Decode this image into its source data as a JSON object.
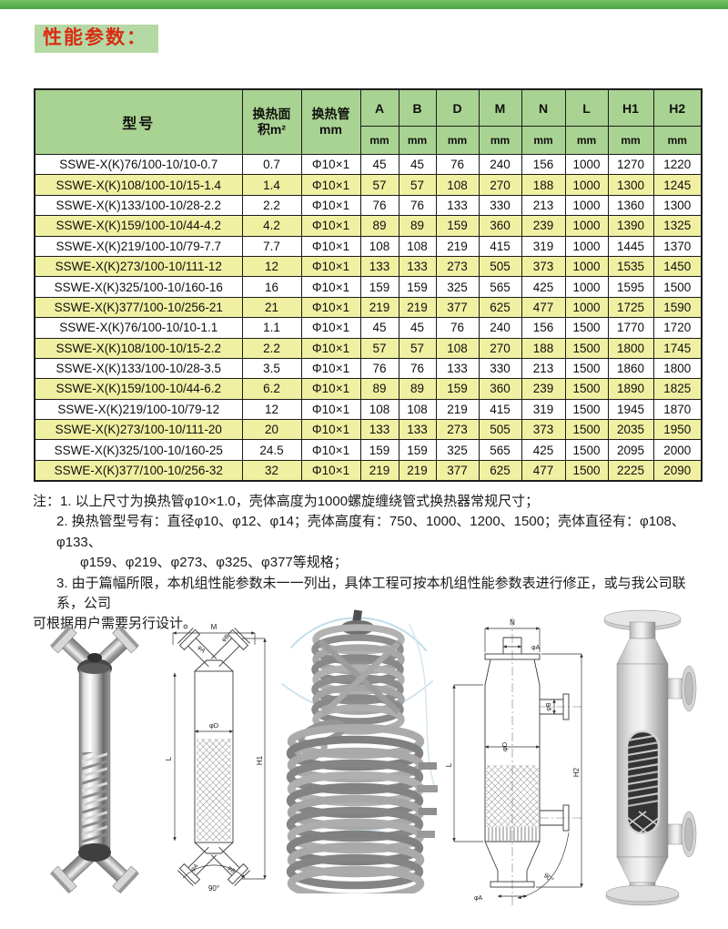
{
  "page": {
    "title": "性能参数："
  },
  "colors": {
    "top_bar": "#55ac4b",
    "title_bg": "#b5d9a4",
    "title_text": "#d92c15",
    "header_green": "#a9d392",
    "row_yellow": "#f0f0a2",
    "border": "#1c1c1c"
  },
  "table": {
    "headers": {
      "model": "型号",
      "area_line1": "换热面",
      "area_line2": "积m²",
      "tube_line1": "换热管",
      "tube_line2": "mm",
      "dims": [
        "A",
        "B",
        "D",
        "M",
        "N",
        "L",
        "H1",
        "H2"
      ],
      "unit": "mm"
    },
    "rows": [
      [
        "SSWE-X(K)76/100-10/10-0.7",
        "0.7",
        "Φ10×1",
        "45",
        "45",
        "76",
        "240",
        "156",
        "1000",
        "1270",
        "1220"
      ],
      [
        "SSWE-X(K)108/100-10/15-1.4",
        "1.4",
        "Φ10×1",
        "57",
        "57",
        "108",
        "270",
        "188",
        "1000",
        "1300",
        "1245"
      ],
      [
        "SSWE-X(K)133/100-10/28-2.2",
        "2.2",
        "Φ10×1",
        "76",
        "76",
        "133",
        "330",
        "213",
        "1000",
        "1360",
        "1300"
      ],
      [
        "SSWE-X(K)159/100-10/44-4.2",
        "4.2",
        "Φ10×1",
        "89",
        "89",
        "159",
        "360",
        "239",
        "1000",
        "1390",
        "1325"
      ],
      [
        "SSWE-X(K)219/100-10/79-7.7",
        "7.7",
        "Φ10×1",
        "108",
        "108",
        "219",
        "415",
        "319",
        "1000",
        "1445",
        "1370"
      ],
      [
        "SSWE-X(K)273/100-10/111-12",
        "12",
        "Φ10×1",
        "133",
        "133",
        "273",
        "505",
        "373",
        "1000",
        "1535",
        "1450"
      ],
      [
        "SSWE-X(K)325/100-10/160-16",
        "16",
        "Φ10×1",
        "159",
        "159",
        "325",
        "565",
        "425",
        "1000",
        "1595",
        "1500"
      ],
      [
        "SSWE-X(K)377/100-10/256-21",
        "21",
        "Φ10×1",
        "219",
        "219",
        "377",
        "625",
        "477",
        "1000",
        "1725",
        "1590"
      ],
      [
        "SSWE-X(K)76/100-10/10-1.1",
        "1.1",
        "Φ10×1",
        "45",
        "45",
        "76",
        "240",
        "156",
        "1500",
        "1770",
        "1720"
      ],
      [
        "SSWE-X(K)108/100-10/15-2.2",
        "2.2",
        "Φ10×1",
        "57",
        "57",
        "108",
        "270",
        "188",
        "1500",
        "1800",
        "1745"
      ],
      [
        "SSWE-X(K)133/100-10/28-3.5",
        "3.5",
        "Φ10×1",
        "76",
        "76",
        "133",
        "330",
        "213",
        "1500",
        "1860",
        "1800"
      ],
      [
        "SSWE-X(K)159/100-10/44-6.2",
        "6.2",
        "Φ10×1",
        "89",
        "89",
        "159",
        "360",
        "239",
        "1500",
        "1890",
        "1825"
      ],
      [
        "SSWE-X(K)219/100-10/79-12",
        "12",
        "Φ10×1",
        "108",
        "108",
        "219",
        "415",
        "319",
        "1500",
        "1945",
        "1870"
      ],
      [
        "SSWE-X(K)273/100-10/111-20",
        "20",
        "Φ10×1",
        "133",
        "133",
        "273",
        "505",
        "373",
        "1500",
        "2035",
        "1950"
      ],
      [
        "SSWE-X(K)325/100-10/160-25",
        "24.5",
        "Φ10×1",
        "159",
        "159",
        "325",
        "565",
        "425",
        "1500",
        "2095",
        "2000"
      ],
      [
        "SSWE-X(K)377/100-10/256-32",
        "32",
        "Φ10×1",
        "219",
        "219",
        "377",
        "625",
        "477",
        "1500",
        "2225",
        "2090"
      ]
    ]
  },
  "notes": {
    "lines": [
      "注：1. 以上尺寸为换热管φ10×1.0，壳体高度为1000螺旋缠绕管式换热器常规尺寸；",
      "2. 换热管型号有：直径φ10、φ12、φ14；壳体高度有：750、1000、1200、1500；壳体直径有：φ108、φ133、",
      "φ159、φ219、φ273、φ325、φ377等规格；",
      "3. 由于篇幅所限，本机组性能参数未一一列出，具体工程可按本机组性能参数表进行修正，或与我公司联系，公司",
      "可根据用户需要另行设计。"
    ]
  },
  "figures": {
    "drawing1": {
      "labels": {
        "m": "M",
        "l": "L",
        "h1": "H1",
        "d": "φD",
        "a": "φA",
        "b": "φB",
        "angle": "90°"
      }
    },
    "drawing2": {
      "labels": {
        "n": "N",
        "a_top": "φA",
        "b_top": "φB",
        "d": "φD",
        "h2": "H2",
        "l": "L",
        "angle": "90°",
        "a_bottom": "φA"
      }
    }
  }
}
